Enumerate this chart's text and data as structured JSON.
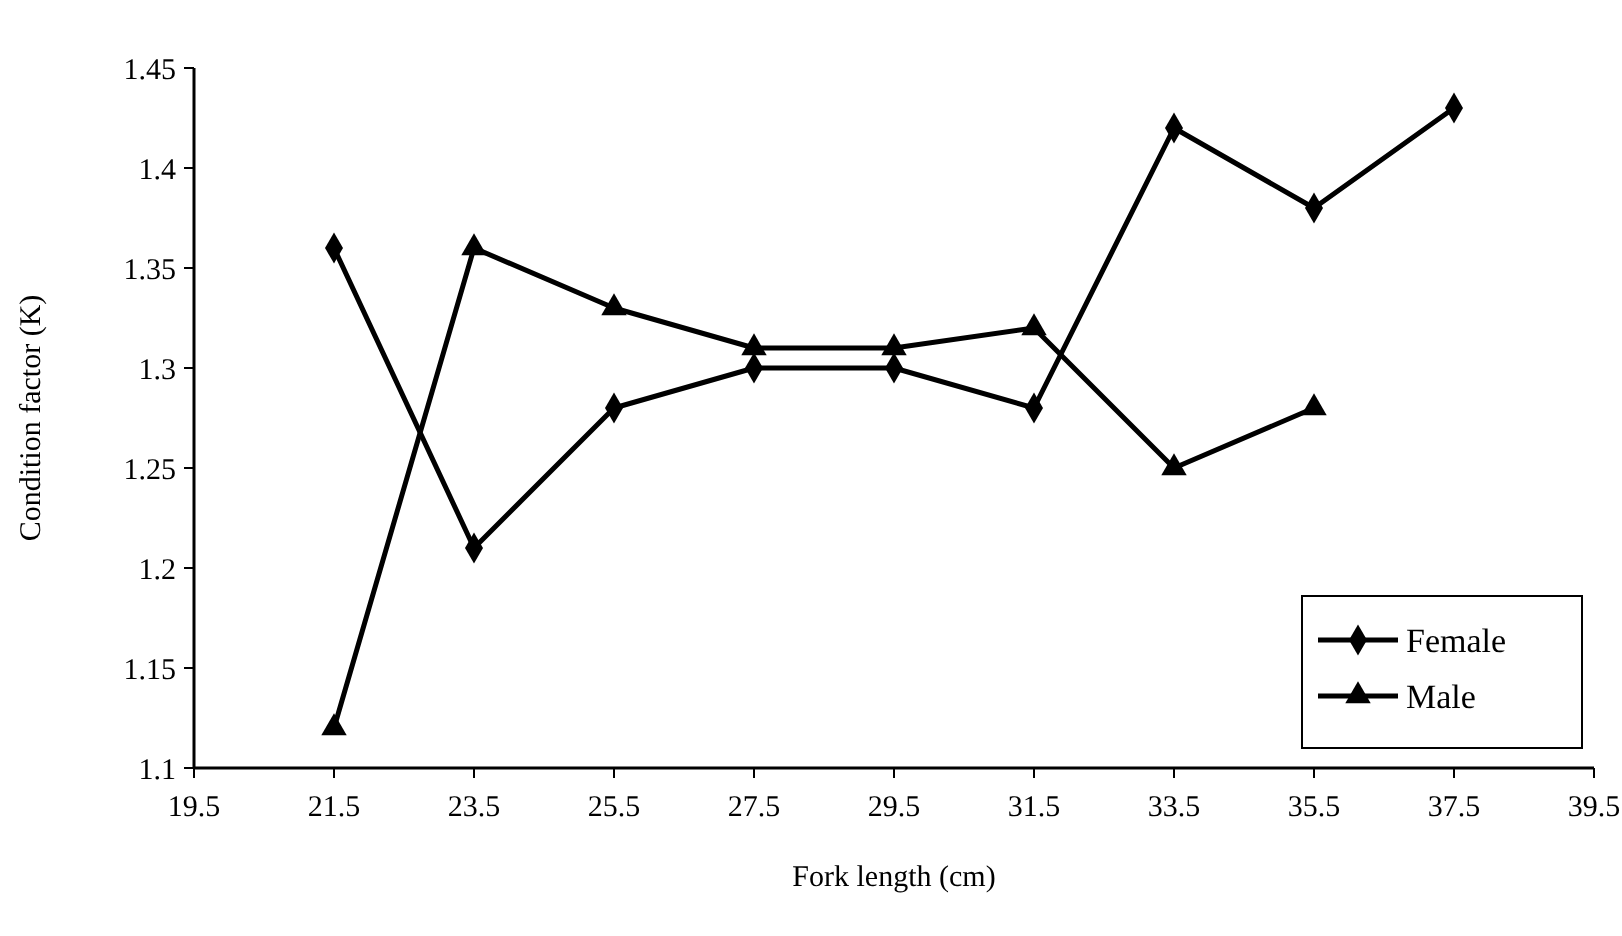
{
  "chart_data": {
    "type": "line",
    "xlabel": "Fork length (cm)",
    "ylabel": "Condition factor (K)",
    "x": [
      21.5,
      23.5,
      25.5,
      27.5,
      29.5,
      31.5,
      33.5,
      35.5,
      37.5
    ],
    "series": [
      {
        "name": "Female",
        "color": "#000000",
        "marker": "diamond",
        "values": [
          1.36,
          1.21,
          1.28,
          1.3,
          1.3,
          1.28,
          1.42,
          1.38,
          1.43
        ]
      },
      {
        "name": "Male",
        "color": "#000000",
        "marker": "triangle",
        "values": [
          1.12,
          1.36,
          1.33,
          1.31,
          1.31,
          1.32,
          1.25,
          1.28,
          null
        ]
      }
    ],
    "xlim": [
      19.5,
      39.5
    ],
    "xticks": [
      19.5,
      21.5,
      23.5,
      25.5,
      27.5,
      29.5,
      31.5,
      33.5,
      35.5,
      37.5,
      39.5
    ],
    "ylim": [
      1.1,
      1.45
    ],
    "yticks": [
      1.1,
      1.15,
      1.2,
      1.25,
      1.3,
      1.35,
      1.4,
      1.45
    ],
    "grid": false,
    "legend": "bottom right",
    "line_style": "solid"
  }
}
